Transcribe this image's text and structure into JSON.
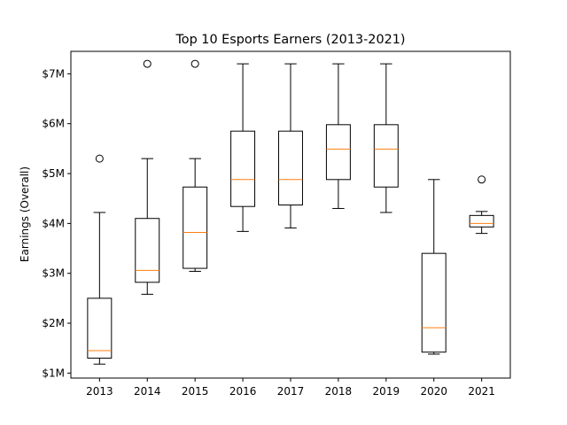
{
  "chart_data": {
    "type": "boxplot",
    "title": "Top 10 Esports Earners (2013-2021)",
    "xlabel": "",
    "ylabel": "Earnings (Overall)",
    "ylim": [
      0.9,
      7.45
    ],
    "y_ticks": [
      1,
      2,
      3,
      4,
      5,
      6,
      7
    ],
    "y_tick_labels": [
      "$1M",
      "$2M",
      "$3M",
      "$4M",
      "$5M",
      "$6M",
      "$7M"
    ],
    "grid": false,
    "categories": [
      "2013",
      "2014",
      "2015",
      "2016",
      "2017",
      "2018",
      "2019",
      "2020",
      "2021"
    ],
    "boxes": [
      {
        "whisker_low": 1.18,
        "q1": 1.3,
        "median": 1.45,
        "q3": 2.5,
        "whisker_high": 4.22,
        "outliers": [
          5.3
        ]
      },
      {
        "whisker_low": 2.58,
        "q1": 2.82,
        "median": 3.06,
        "q3": 4.1,
        "whisker_high": 5.3,
        "outliers": [
          7.2
        ]
      },
      {
        "whisker_low": 3.04,
        "q1": 3.1,
        "median": 3.82,
        "q3": 4.73,
        "whisker_high": 5.3,
        "outliers": [
          7.2
        ]
      },
      {
        "whisker_low": 3.84,
        "q1": 4.34,
        "median": 4.88,
        "q3": 5.85,
        "whisker_high": 7.2,
        "outliers": []
      },
      {
        "whisker_low": 3.91,
        "q1": 4.37,
        "median": 4.88,
        "q3": 5.85,
        "whisker_high": 7.2,
        "outliers": []
      },
      {
        "whisker_low": 4.3,
        "q1": 4.88,
        "median": 5.49,
        "q3": 5.98,
        "whisker_high": 7.2,
        "outliers": []
      },
      {
        "whisker_low": 4.22,
        "q1": 4.73,
        "median": 5.49,
        "q3": 5.98,
        "whisker_high": 7.2,
        "outliers": []
      },
      {
        "whisker_low": 1.38,
        "q1": 1.42,
        "median": 1.91,
        "q3": 3.4,
        "whisker_high": 4.88,
        "outliers": []
      },
      {
        "whisker_low": 3.8,
        "q1": 3.93,
        "median": 4.0,
        "q3": 4.16,
        "whisker_high": 4.24,
        "outliers": [
          4.88
        ]
      }
    ],
    "colors": {
      "box": "#000000",
      "median": "#ff7f0e",
      "outlier": "#000000",
      "background": "#ffffff"
    }
  }
}
